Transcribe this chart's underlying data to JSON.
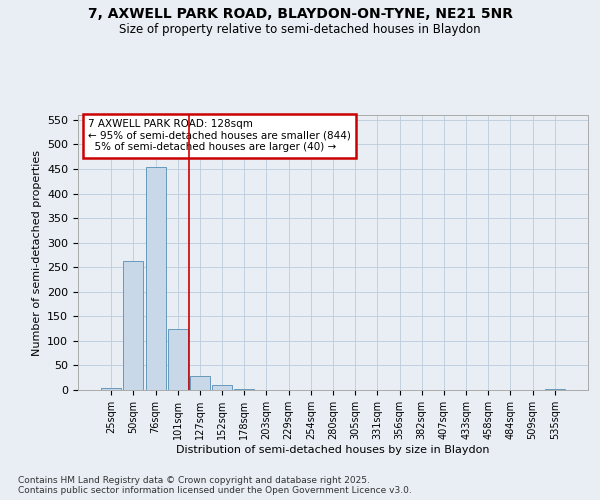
{
  "title_line1": "7, AXWELL PARK ROAD, BLAYDON-ON-TYNE, NE21 5NR",
  "title_line2": "Size of property relative to semi-detached houses in Blaydon",
  "xlabel": "Distribution of semi-detached houses by size in Blaydon",
  "ylabel": "Number of semi-detached properties",
  "categories": [
    "25sqm",
    "50sqm",
    "76sqm",
    "101sqm",
    "127sqm",
    "152sqm",
    "178sqm",
    "203sqm",
    "229sqm",
    "254sqm",
    "280sqm",
    "305sqm",
    "331sqm",
    "356sqm",
    "382sqm",
    "407sqm",
    "433sqm",
    "458sqm",
    "484sqm",
    "509sqm",
    "535sqm"
  ],
  "values": [
    5,
    263,
    454,
    125,
    28,
    10,
    2,
    0,
    0,
    0,
    0,
    0,
    0,
    0,
    0,
    0,
    0,
    0,
    0,
    0,
    3
  ],
  "bar_color": "#c8d8e8",
  "bar_edge_color": "#6699bb",
  "property_size": "128sqm",
  "property_name": "7 AXWELL PARK ROAD",
  "pct_smaller": 95,
  "n_smaller": 844,
  "pct_larger": 5,
  "n_larger": 40,
  "annotation_box_color": "#cc0000",
  "vline_x": 3.5,
  "vline_color": "#cc0000",
  "ylim": [
    0,
    560
  ],
  "yticks": [
    0,
    50,
    100,
    150,
    200,
    250,
    300,
    350,
    400,
    450,
    500,
    550
  ],
  "grid_color": "#bbccdd",
  "background_color": "#e8eef4",
  "footer_line1": "Contains HM Land Registry data © Crown copyright and database right 2025.",
  "footer_line2": "Contains public sector information licensed under the Open Government Licence v3.0."
}
